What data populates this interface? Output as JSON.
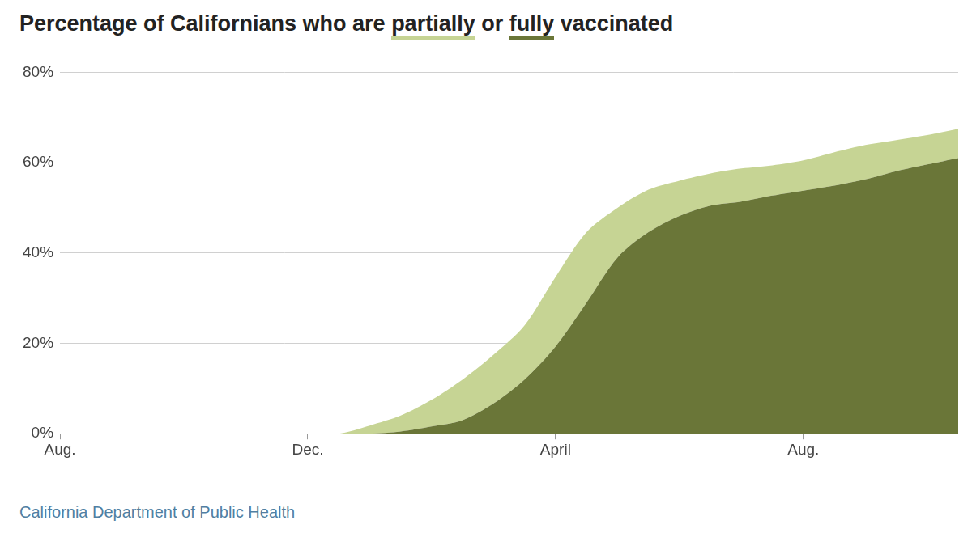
{
  "chart_data": {
    "type": "area",
    "title": "Percentage of Californians who are partially or fully vaccinated",
    "source": "California Department of Public Health",
    "categories": [
      "Aug.",
      null,
      null,
      null,
      null,
      null,
      null,
      null,
      "Dec.",
      null,
      null,
      null,
      null,
      null,
      null,
      null,
      "April",
      null,
      null,
      null,
      null,
      null,
      null,
      null,
      "Aug.",
      null,
      null,
      null,
      null,
      null
    ],
    "series": [
      {
        "name": "fully",
        "color": "#6a7638",
        "values": [
          0,
          0,
          0,
          0,
          0,
          0,
          0,
          0,
          0,
          0,
          0,
          0.5,
          1.6,
          3,
          6.7,
          12,
          19.3,
          29,
          39,
          44.6,
          48.2,
          50.5,
          51.4,
          52.7,
          53.8,
          54.9,
          56.3,
          58.1,
          59.6,
          61
        ]
      },
      {
        "name": "partially",
        "color": "#c6d494",
        "values": [
          0,
          0,
          0,
          0,
          0,
          0,
          0,
          0,
          0,
          0,
          1.8,
          3.5,
          5.9,
          9,
          10.8,
          12,
          15.4,
          15.6,
          11,
          9.4,
          7.8,
          7.1,
          7.3,
          6.7,
          6.7,
          7.4,
          7.6,
          6.9,
          6.5,
          6.5
        ]
      }
    ],
    "stacked": true,
    "ylim": [
      0,
      80
    ],
    "yticks": [
      {
        "value": 0,
        "label": "0%"
      },
      {
        "value": 20,
        "label": "20%"
      },
      {
        "value": 40,
        "label": "40%"
      },
      {
        "value": 60,
        "label": "60%"
      },
      {
        "value": 80,
        "label": "80%"
      }
    ],
    "grid": true
  }
}
